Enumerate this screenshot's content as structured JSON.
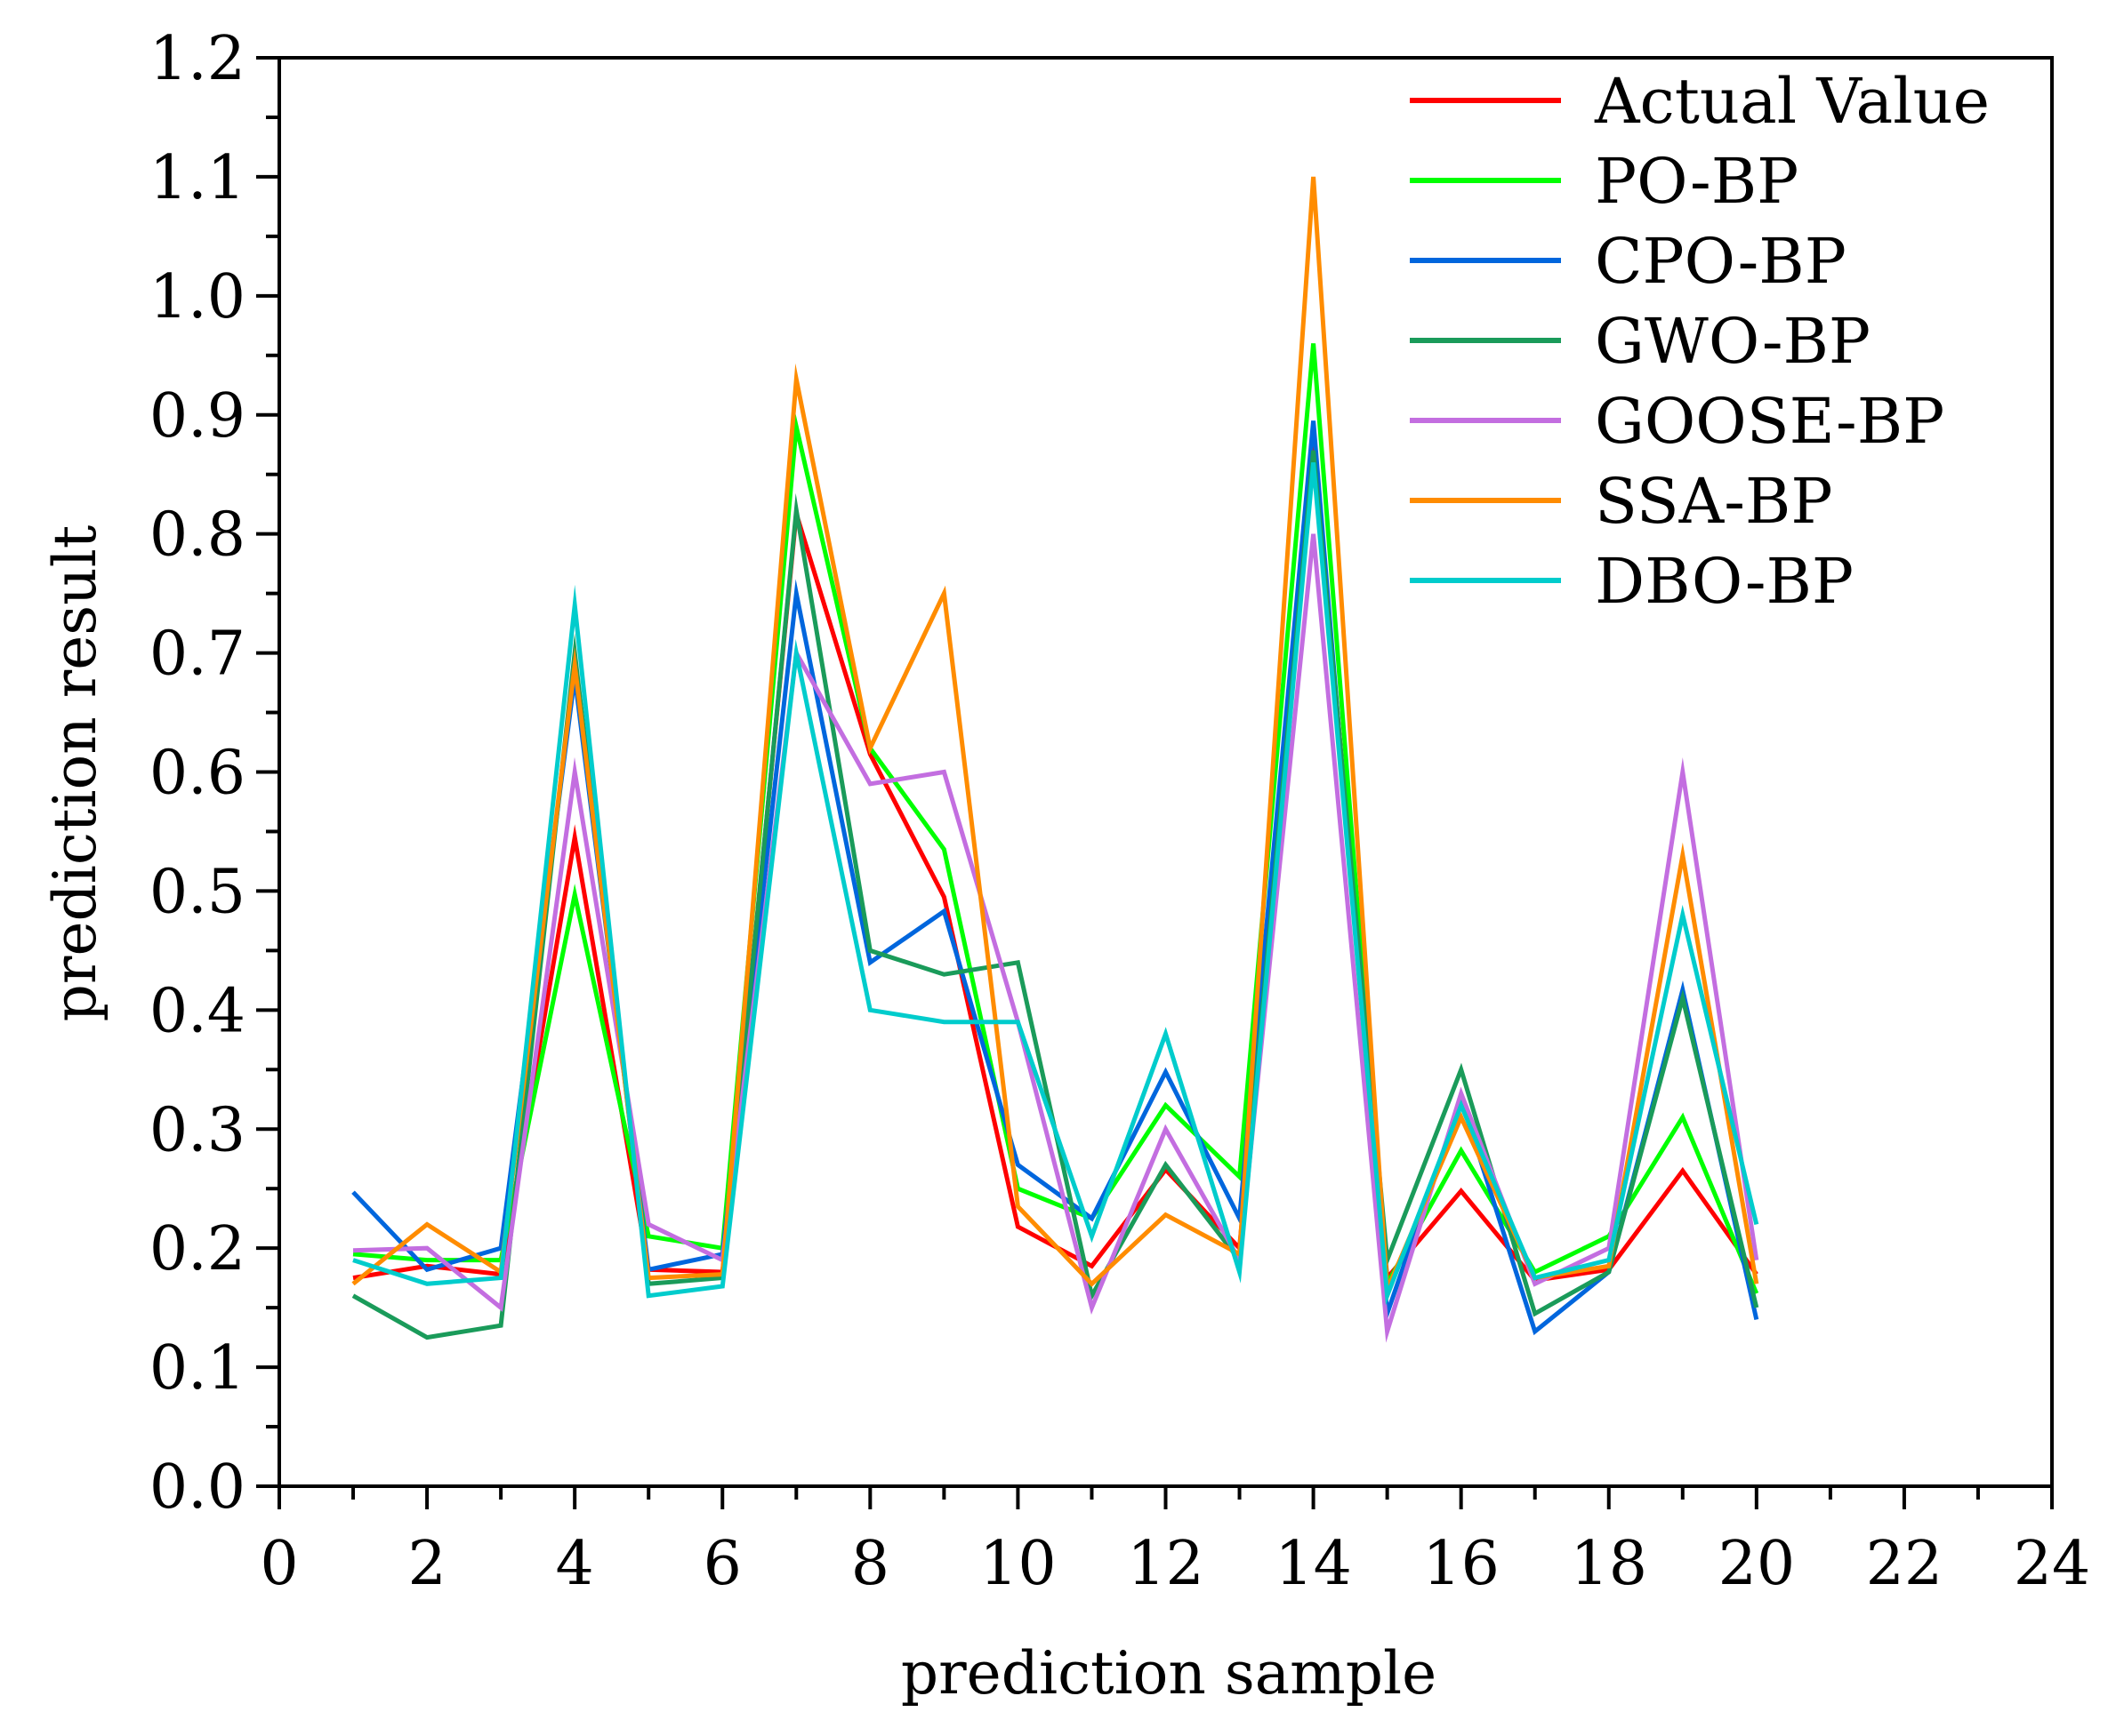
{
  "chart_data": {
    "type": "line",
    "title": "",
    "xlabel": "prediction sample",
    "ylabel": "prediction result",
    "xlim": [
      0,
      24
    ],
    "ylim": [
      0.0,
      1.2
    ],
    "x_ticks": [
      0,
      2,
      4,
      6,
      8,
      10,
      12,
      14,
      16,
      18,
      20,
      22,
      24
    ],
    "x_tick_labels": [
      "0",
      "2",
      "4",
      "6",
      "8",
      "10",
      "12",
      "14",
      "16",
      "18",
      "20",
      "22",
      "24"
    ],
    "y_ticks": [
      0.0,
      0.1,
      0.2,
      0.3,
      0.4,
      0.5,
      0.6,
      0.7,
      0.8,
      0.9,
      1.0,
      1.1,
      1.2
    ],
    "y_tick_labels": [
      "0.0",
      "0.1",
      "0.2",
      "0.3",
      "0.4",
      "0.5",
      "0.6",
      "0.7",
      "0.8",
      "0.9",
      "1.0",
      "1.1",
      "1.2"
    ],
    "grid": false,
    "legend_position": "top-right",
    "x": [
      1,
      2,
      3,
      4,
      5,
      6,
      7,
      8,
      9,
      10,
      11,
      12,
      13,
      14,
      15,
      16,
      17,
      18,
      19,
      20
    ],
    "series": [
      {
        "name": "Actual Value",
        "color": "#ff0000",
        "values": [
          0.175,
          0.185,
          0.178,
          0.545,
          0.182,
          0.18,
          0.817,
          0.615,
          0.495,
          0.218,
          0.185,
          0.266,
          0.2,
          0.88,
          0.175,
          0.248,
          0.173,
          0.182,
          0.265,
          0.178
        ]
      },
      {
        "name": "PO-BP",
        "color": "#00ff00",
        "values": [
          0.195,
          0.19,
          0.19,
          0.497,
          0.21,
          0.2,
          0.89,
          0.62,
          0.535,
          0.25,
          0.225,
          0.32,
          0.26,
          0.96,
          0.17,
          0.282,
          0.18,
          0.21,
          0.31,
          0.162
        ]
      },
      {
        "name": "CPO-BP",
        "color": "#0066dd",
        "values": [
          0.247,
          0.182,
          0.2,
          0.68,
          0.182,
          0.195,
          0.75,
          0.44,
          0.483,
          0.27,
          0.225,
          0.348,
          0.225,
          0.895,
          0.145,
          0.325,
          0.13,
          0.18,
          0.417,
          0.14
        ]
      },
      {
        "name": "GWO-BP",
        "color": "#1a9b5a",
        "values": [
          0.16,
          0.125,
          0.135,
          0.7,
          0.17,
          0.175,
          0.82,
          0.45,
          0.43,
          0.44,
          0.16,
          0.27,
          0.19,
          0.87,
          0.19,
          0.35,
          0.145,
          0.18,
          0.41,
          0.15
        ]
      },
      {
        "name": "GOOSE-BP",
        "color": "#c36ee0",
        "values": [
          0.198,
          0.2,
          0.15,
          0.6,
          0.22,
          0.19,
          0.7,
          0.59,
          0.6,
          0.39,
          0.15,
          0.3,
          0.19,
          0.8,
          0.13,
          0.33,
          0.17,
          0.2,
          0.6,
          0.19
        ]
      },
      {
        "name": "SSA-BP",
        "color": "#ff8c00",
        "values": [
          0.17,
          0.22,
          0.18,
          0.69,
          0.175,
          0.178,
          0.93,
          0.62,
          0.75,
          0.235,
          0.17,
          0.228,
          0.195,
          1.1,
          0.165,
          0.31,
          0.175,
          0.185,
          0.53,
          0.17
        ]
      },
      {
        "name": "DBO-BP",
        "color": "#00cccc",
        "values": [
          0.19,
          0.17,
          0.175,
          0.74,
          0.16,
          0.168,
          0.7,
          0.4,
          0.39,
          0.39,
          0.21,
          0.38,
          0.18,
          0.86,
          0.16,
          0.32,
          0.175,
          0.19,
          0.48,
          0.22
        ]
      }
    ]
  }
}
